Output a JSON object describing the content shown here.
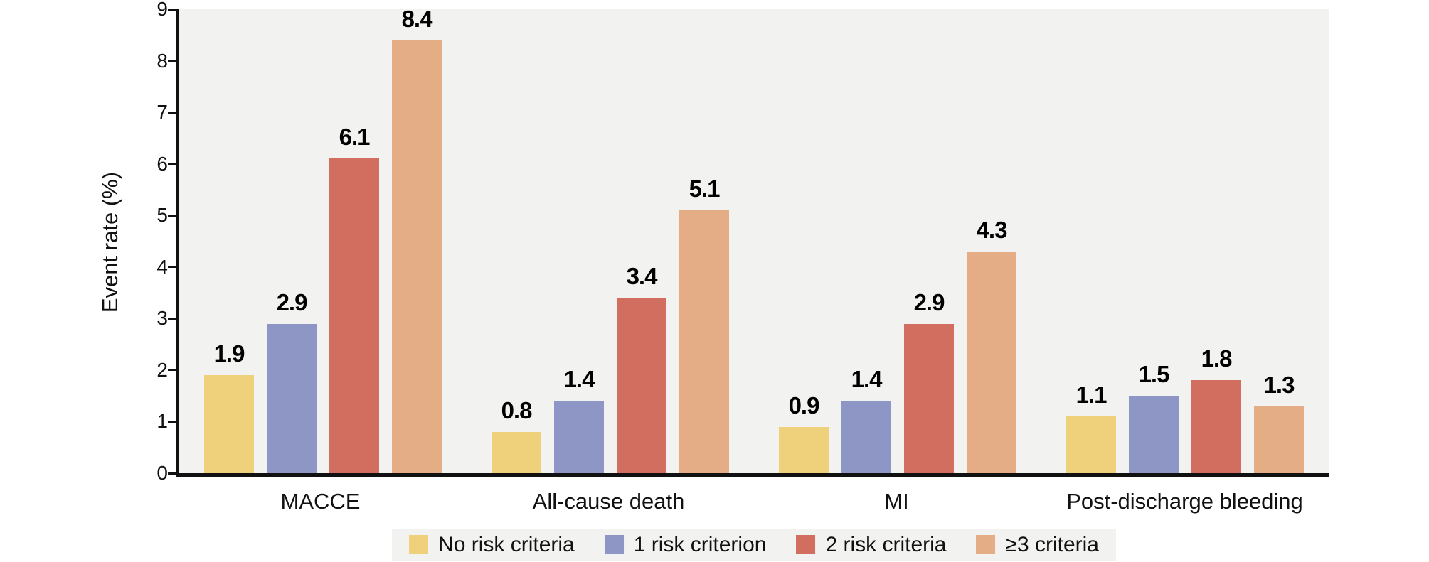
{
  "chart_data": {
    "type": "bar",
    "title": "",
    "xlabel": "",
    "ylabel": "Event rate (%)",
    "ylim": [
      0,
      9
    ],
    "yticks": [
      0,
      1,
      2,
      3,
      4,
      5,
      6,
      7,
      8,
      9
    ],
    "grid": false,
    "legend_position": "bottom",
    "value_labels": true,
    "value_label_decimals": 1,
    "categories": [
      "MACCE",
      "All-cause death",
      "MI",
      "Post-discharge bleeding"
    ],
    "series": [
      {
        "name": "No risk criteria",
        "color": "#efd17c",
        "values": [
          1.9,
          0.8,
          0.9,
          1.1
        ]
      },
      {
        "name": "1 risk criterion",
        "color": "#8e96c6",
        "values": [
          2.9,
          1.4,
          1.4,
          1.5
        ]
      },
      {
        "name": "2 risk criteria",
        "color": "#d26e60",
        "values": [
          6.1,
          3.4,
          2.9,
          1.8
        ]
      },
      {
        "name": "≥3 criteria",
        "color": "#e4ad85",
        "values": [
          8.4,
          5.1,
          4.3,
          1.3
        ]
      }
    ]
  },
  "colors": {
    "plot_background": "#f2f2f1",
    "legend_background": "#f2f2f1",
    "axis": "#111111",
    "text": "#000000"
  }
}
